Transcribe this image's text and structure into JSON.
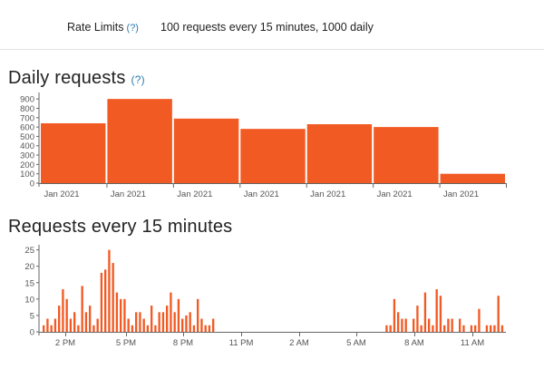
{
  "rate_limits": {
    "label": "Rate Limits",
    "help": "(?)",
    "value": "100 requests every 15 minutes, 1000 daily"
  },
  "daily": {
    "title": "Daily requests",
    "help": "(?)"
  },
  "fifteen": {
    "title": "Requests every 15 minutes"
  },
  "colors": {
    "bar": "#f25a24",
    "axis": "#666666",
    "text": "#555555"
  },
  "chart_data": [
    {
      "type": "bar",
      "title": "Daily requests",
      "categories": [
        "Jan 2021",
        "Jan 2021",
        "Jan 2021",
        "Jan 2021",
        "Jan 2021",
        "Jan 2021",
        "Jan 2021"
      ],
      "values": [
        640,
        900,
        690,
        580,
        630,
        600,
        100
      ],
      "yticks": [
        0,
        100,
        200,
        300,
        400,
        500,
        600,
        700,
        800,
        900
      ],
      "ylim": [
        0,
        950
      ],
      "grid": false
    },
    {
      "type": "bar",
      "title": "Requests every 15 minutes",
      "xticks": [
        "2 PM",
        "5 PM",
        "8 PM",
        "11 PM",
        "2 AM",
        "5 AM",
        "8 AM",
        "11 AM"
      ],
      "yticks": [
        0,
        5,
        10,
        15,
        20,
        25
      ],
      "ylim": [
        0,
        26
      ],
      "values": [
        2,
        4,
        2,
        4,
        8,
        13,
        10,
        4,
        6,
        2,
        14,
        6,
        8,
        2,
        4,
        18,
        19,
        25,
        21,
        12,
        10,
        10,
        4,
        2,
        6,
        6,
        4,
        2,
        8,
        2,
        6,
        6,
        8,
        12,
        6,
        10,
        4,
        5,
        6,
        2,
        10,
        4,
        2,
        2,
        4,
        0,
        0,
        0,
        0,
        0,
        0,
        0,
        0,
        0,
        0,
        0,
        0,
        0,
        0,
        0,
        0,
        0,
        0,
        0,
        0,
        0,
        0,
        0,
        0,
        0,
        0,
        0,
        0,
        0,
        0,
        0,
        0,
        0,
        0,
        0,
        0,
        0,
        0,
        0,
        0,
        0,
        0,
        0,
        0,
        2,
        2,
        10,
        6,
        4,
        4,
        0,
        4,
        8,
        2,
        12,
        4,
        2,
        13,
        11,
        2,
        4,
        4,
        0,
        4,
        2,
        0,
        2,
        2,
        7,
        0,
        2,
        2,
        2,
        11,
        2
      ],
      "grid": false
    }
  ]
}
